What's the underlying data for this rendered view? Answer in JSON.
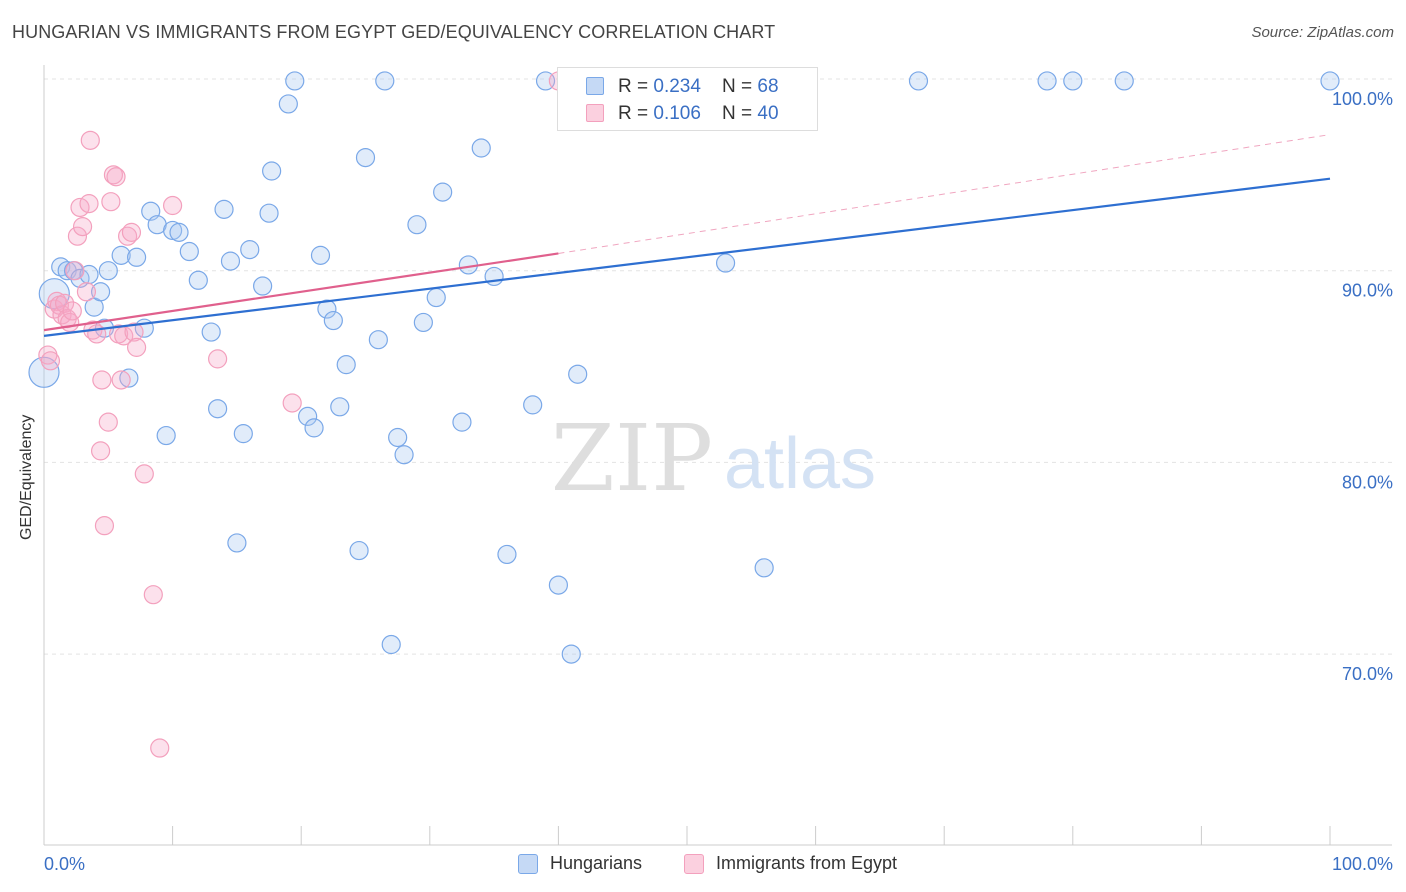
{
  "title": "HUNGARIAN VS IMMIGRANTS FROM EGYPT GED/EQUIVALENCY CORRELATION CHART",
  "source": "Source: ZipAtlas.com",
  "watermark": {
    "zip": "ZIP",
    "atlas": "atlas"
  },
  "legend_top": {
    "rows": [
      {
        "r_label": "R = ",
        "r_value": "0.234",
        "n_label": "N = ",
        "n_value": "68"
      },
      {
        "r_label": "R = ",
        "r_value": "0.106",
        "n_label": "N = ",
        "n_value": "40"
      }
    ]
  },
  "chart_data": {
    "type": "scatter",
    "title": "HUNGARIAN VS IMMIGRANTS FROM EGYPT GED/EQUIVALENCY CORRELATION CHART",
    "xlabel": "",
    "ylabel": "GED/Equivalency",
    "xlim": [
      0,
      100
    ],
    "ylim": [
      60,
      101.5
    ],
    "x_tick_labels": [
      "0.0%",
      "100.0%"
    ],
    "y_ticks": [
      100,
      90,
      80,
      70
    ],
    "y_tick_labels": [
      "100.0%",
      "90.0%",
      "80.0%",
      "70.0%"
    ],
    "grid": true,
    "legend_position": "bottom-center",
    "series": [
      {
        "name": "Hungarians",
        "color": "#7aa8e8",
        "line_color": "#2e6fd1",
        "R": 0.234,
        "N": 68,
        "trend": {
          "x0": 0,
          "y0": 86.6,
          "x1": 100,
          "y1": 94.8
        },
        "points": [
          {
            "x": 0.0,
            "y": 84.7,
            "big": true
          },
          {
            "x": 0.8,
            "y": 88.8,
            "big": true
          },
          {
            "x": 1.3,
            "y": 90.2
          },
          {
            "x": 1.8,
            "y": 90.0
          },
          {
            "x": 2.3,
            "y": 90.0
          },
          {
            "x": 2.8,
            "y": 89.6
          },
          {
            "x": 3.5,
            "y": 89.8
          },
          {
            "x": 3.9,
            "y": 88.1
          },
          {
            "x": 4.4,
            "y": 88.9
          },
          {
            "x": 4.7,
            "y": 87.0
          },
          {
            "x": 5.0,
            "y": 90.0
          },
          {
            "x": 6.0,
            "y": 90.8
          },
          {
            "x": 6.6,
            "y": 84.4
          },
          {
            "x": 7.2,
            "y": 90.7
          },
          {
            "x": 7.8,
            "y": 87.0
          },
          {
            "x": 8.3,
            "y": 93.1
          },
          {
            "x": 8.8,
            "y": 92.4
          },
          {
            "x": 9.5,
            "y": 81.4
          },
          {
            "x": 10.0,
            "y": 92.1
          },
          {
            "x": 10.5,
            "y": 92.0
          },
          {
            "x": 11.3,
            "y": 91.0
          },
          {
            "x": 12.0,
            "y": 89.5
          },
          {
            "x": 13.0,
            "y": 86.8
          },
          {
            "x": 13.5,
            "y": 82.8
          },
          {
            "x": 14.0,
            "y": 93.2
          },
          {
            "x": 14.5,
            "y": 90.5
          },
          {
            "x": 15.0,
            "y": 75.8
          },
          {
            "x": 15.5,
            "y": 81.5
          },
          {
            "x": 16.0,
            "y": 91.1
          },
          {
            "x": 17.0,
            "y": 89.2
          },
          {
            "x": 17.5,
            "y": 93.0
          },
          {
            "x": 17.7,
            "y": 95.2
          },
          {
            "x": 19.0,
            "y": 98.7
          },
          {
            "x": 19.5,
            "y": 99.9
          },
          {
            "x": 20.5,
            "y": 82.4
          },
          {
            "x": 21.0,
            "y": 81.8
          },
          {
            "x": 21.5,
            "y": 90.8
          },
          {
            "x": 22.0,
            "y": 88.0
          },
          {
            "x": 22.5,
            "y": 87.4
          },
          {
            "x": 23.0,
            "y": 82.9
          },
          {
            "x": 23.5,
            "y": 85.1
          },
          {
            "x": 24.5,
            "y": 75.4
          },
          {
            "x": 25.0,
            "y": 95.9
          },
          {
            "x": 26.0,
            "y": 86.4
          },
          {
            "x": 26.5,
            "y": 99.9
          },
          {
            "x": 27.0,
            "y": 70.5
          },
          {
            "x": 27.5,
            "y": 81.3
          },
          {
            "x": 28.0,
            "y": 80.4
          },
          {
            "x": 29.0,
            "y": 92.4
          },
          {
            "x": 29.5,
            "y": 87.3
          },
          {
            "x": 30.5,
            "y": 88.6
          },
          {
            "x": 31.0,
            "y": 94.1
          },
          {
            "x": 32.5,
            "y": 82.1
          },
          {
            "x": 33.0,
            "y": 90.3
          },
          {
            "x": 34.0,
            "y": 96.4
          },
          {
            "x": 35.0,
            "y": 89.7
          },
          {
            "x": 36.0,
            "y": 75.2
          },
          {
            "x": 38.0,
            "y": 83.0
          },
          {
            "x": 39.0,
            "y": 99.9
          },
          {
            "x": 40.0,
            "y": 73.6
          },
          {
            "x": 41.0,
            "y": 70.0
          },
          {
            "x": 41.5,
            "y": 84.6
          },
          {
            "x": 53.0,
            "y": 90.4
          },
          {
            "x": 53.5,
            "y": 99.9
          },
          {
            "x": 56.0,
            "y": 74.5
          },
          {
            "x": 68.0,
            "y": 99.9
          },
          {
            "x": 78.0,
            "y": 99.9
          },
          {
            "x": 80.0,
            "y": 99.9
          },
          {
            "x": 84.0,
            "y": 99.9
          },
          {
            "x": 100.0,
            "y": 99.9
          }
        ]
      },
      {
        "name": "Immigrants from Egypt",
        "color": "#f3a0bd",
        "line_color": "#e0608d",
        "R": 0.106,
        "N": 40,
        "trend": {
          "x0": 0,
          "y0": 86.9,
          "x1": 40,
          "y1": 90.9,
          "dash_to_x": 100,
          "dash_to_y": 97.1
        },
        "points": [
          {
            "x": 0.3,
            "y": 85.6
          },
          {
            "x": 0.5,
            "y": 85.3
          },
          {
            "x": 0.8,
            "y": 88.0
          },
          {
            "x": 1.0,
            "y": 88.4
          },
          {
            "x": 1.2,
            "y": 88.2
          },
          {
            "x": 1.4,
            "y": 87.7
          },
          {
            "x": 1.6,
            "y": 88.3
          },
          {
            "x": 1.8,
            "y": 87.5
          },
          {
            "x": 2.0,
            "y": 87.3
          },
          {
            "x": 2.2,
            "y": 87.9
          },
          {
            "x": 2.4,
            "y": 90.0
          },
          {
            "x": 2.6,
            "y": 91.8
          },
          {
            "x": 2.8,
            "y": 93.3
          },
          {
            "x": 3.0,
            "y": 92.3
          },
          {
            "x": 3.3,
            "y": 88.9
          },
          {
            "x": 3.5,
            "y": 93.5
          },
          {
            "x": 3.6,
            "y": 96.8
          },
          {
            "x": 3.8,
            "y": 86.9
          },
          {
            "x": 4.1,
            "y": 86.7
          },
          {
            "x": 4.4,
            "y": 80.6
          },
          {
            "x": 4.5,
            "y": 84.3
          },
          {
            "x": 4.7,
            "y": 76.7
          },
          {
            "x": 5.0,
            "y": 82.1
          },
          {
            "x": 5.2,
            "y": 93.6
          },
          {
            "x": 5.4,
            "y": 95.0
          },
          {
            "x": 5.6,
            "y": 94.9
          },
          {
            "x": 5.8,
            "y": 86.7
          },
          {
            "x": 6.0,
            "y": 84.3
          },
          {
            "x": 6.2,
            "y": 86.6
          },
          {
            "x": 6.5,
            "y": 91.8
          },
          {
            "x": 6.8,
            "y": 92.0
          },
          {
            "x": 7.0,
            "y": 86.8
          },
          {
            "x": 7.2,
            "y": 86.0
          },
          {
            "x": 7.8,
            "y": 79.4
          },
          {
            "x": 8.5,
            "y": 73.1
          },
          {
            "x": 9.0,
            "y": 65.1
          },
          {
            "x": 10.0,
            "y": 93.4
          },
          {
            "x": 13.5,
            "y": 85.4
          },
          {
            "x": 19.3,
            "y": 83.1
          },
          {
            "x": 40.0,
            "y": 99.9
          }
        ]
      }
    ]
  }
}
